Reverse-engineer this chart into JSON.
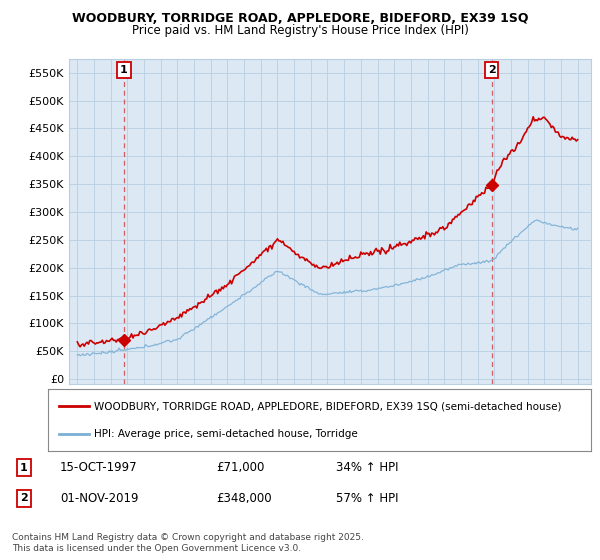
{
  "title": "WOODBURY, TORRIDGE ROAD, APPLEDORE, BIDEFORD, EX39 1SQ",
  "subtitle": "Price paid vs. HM Land Registry's House Price Index (HPI)",
  "legend_line1": "WOODBURY, TORRIDGE ROAD, APPLEDORE, BIDEFORD, EX39 1SQ (semi-detached house)",
  "legend_line2": "HPI: Average price, semi-detached house, Torridge",
  "annotation1_label": "1",
  "annotation1_date": "15-OCT-1997",
  "annotation1_price": "£71,000",
  "annotation1_hpi": "34% ↑ HPI",
  "annotation2_label": "2",
  "annotation2_date": "01-NOV-2019",
  "annotation2_price": "£348,000",
  "annotation2_hpi": "57% ↑ HPI",
  "footer": "Contains HM Land Registry data © Crown copyright and database right 2025.\nThis data is licensed under the Open Government Licence v3.0.",
  "red_color": "#cc0000",
  "blue_color": "#7bafd4",
  "plot_bg_color": "#dce9f5",
  "background_color": "#ffffff",
  "grid_color": "#b8cfe0",
  "sale1_x": 1997.79,
  "sale1_y": 71000,
  "sale2_x": 2019.84,
  "sale2_y": 348000,
  "ylim_max": 575000,
  "yticks": [
    0,
    50000,
    100000,
    150000,
    200000,
    250000,
    300000,
    350000,
    400000,
    450000,
    500000,
    550000
  ],
  "ytick_labels": [
    "£0",
    "£50K",
    "£100K",
    "£150K",
    "£200K",
    "£250K",
    "£300K",
    "£350K",
    "£400K",
    "£450K",
    "£500K",
    "£550K"
  ],
  "xlim_min": 1994.5,
  "xlim_max": 2025.8,
  "xticks": [
    1995,
    1996,
    1997,
    1998,
    1999,
    2000,
    2001,
    2002,
    2003,
    2004,
    2005,
    2006,
    2007,
    2008,
    2009,
    2010,
    2011,
    2012,
    2013,
    2014,
    2015,
    2016,
    2017,
    2018,
    2019,
    2020,
    2021,
    2022,
    2023,
    2024,
    2025
  ]
}
